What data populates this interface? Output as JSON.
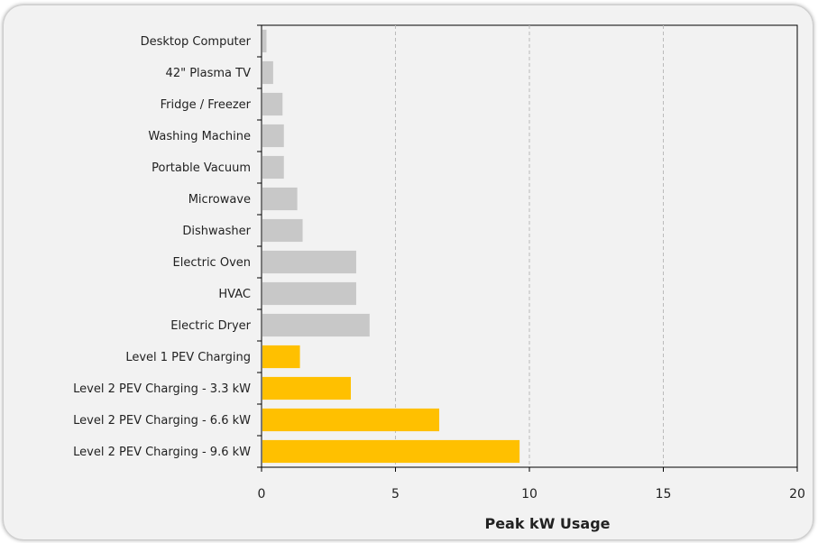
{
  "chart_data": {
    "type": "bar",
    "orientation": "horizontal",
    "categories": [
      "Desktop Computer",
      "42\" Plasma TV",
      "Fridge / Freezer",
      "Washing Machine",
      "Portable Vacuum",
      "Microwave",
      "Dishwasher",
      "Electric Oven",
      "HVAC",
      "Electric Dryer",
      "Level 1 PEV Charging",
      "Level 2 PEV Charging - 3.3 kW",
      "Level 2 PEV Charging - 6.6 kW",
      "Level 2 PEV Charging - 9.6 kW"
    ],
    "values": [
      0.15,
      0.4,
      0.75,
      0.8,
      0.8,
      1.3,
      1.5,
      3.5,
      3.5,
      4.0,
      1.4,
      3.3,
      6.6,
      9.6
    ],
    "bar_colors": [
      "#c8c8c8",
      "#c8c8c8",
      "#c8c8c8",
      "#c8c8c8",
      "#c8c8c8",
      "#c8c8c8",
      "#c8c8c8",
      "#c8c8c8",
      "#c8c8c8",
      "#c8c8c8",
      "#ffc000",
      "#ffc000",
      "#ffc000",
      "#ffc000"
    ],
    "xlabel": "Peak kW Usage",
    "ylabel": "",
    "title": "",
    "xlim": [
      0,
      20
    ],
    "xticks": [
      0,
      5,
      10,
      15,
      20
    ],
    "xtick_labels": [
      "0",
      "5",
      "10",
      "15",
      "20"
    ],
    "grid": "vertical dashed",
    "colors": {
      "appliance": "#c8c8c8",
      "pev": "#ffc000",
      "grid": "#bbbbbb",
      "background": "#f2f2f2"
    }
  }
}
